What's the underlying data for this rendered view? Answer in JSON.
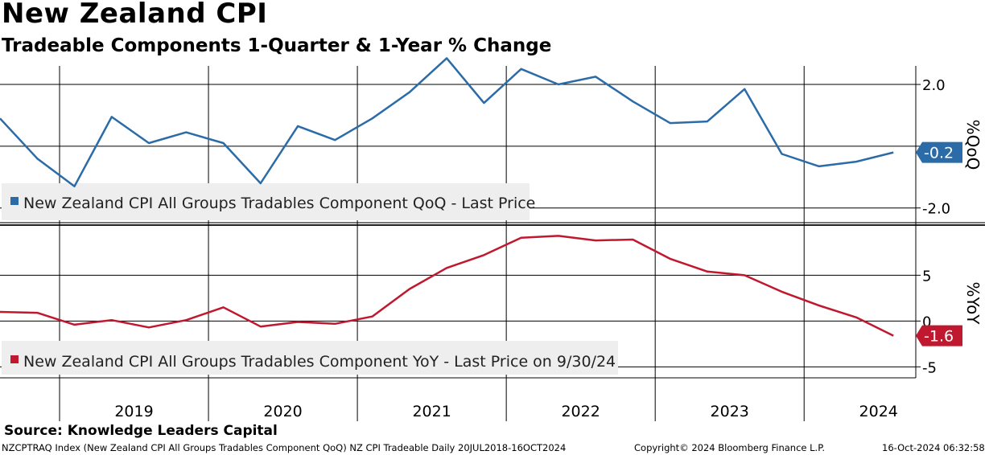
{
  "title": "New Zealand CPI",
  "subtitle": "Tradeable Components 1-Quarter & 1-Year % Change",
  "source": "Source: Knowledge Leaders Capital",
  "footer": {
    "left": "NZCPTRAQ Index (New Zealand CPI All Groups Tradables Component QoQ) NZ CPI Tradeable  Daily 20JUL2018-16OCT2024",
    "middle": "Copyright© 2024 Bloomberg Finance L.P.",
    "right": "16-Oct-2024 06:32:58"
  },
  "chart_data": [
    {
      "type": "line",
      "name": "qoq",
      "ylabel": "%QoQ",
      "legend": "New Zealand CPI All Groups Tradables Component QoQ - Last Price",
      "color": "#2b6ca8",
      "ylim": [
        -2.45,
        2.6
      ],
      "yticks": [
        2.0,
        0,
        -2.0
      ],
      "ytick_labels": [
        "2.0",
        "",
        "-2.0"
      ],
      "x": [
        2018.6,
        2018.85,
        2019.1,
        2019.35,
        2019.6,
        2019.85,
        2020.1,
        2020.35,
        2020.6,
        2020.85,
        2021.1,
        2021.35,
        2021.6,
        2021.85,
        2022.1,
        2022.35,
        2022.6,
        2022.85,
        2023.1,
        2023.35,
        2023.6,
        2023.85,
        2024.1,
        2024.35,
        2024.6
      ],
      "values": [
        0.9,
        -0.4,
        -1.3,
        0.95,
        0.1,
        0.45,
        0.1,
        -1.2,
        0.65,
        0.2,
        0.9,
        1.75,
        2.85,
        1.4,
        2.5,
        2.0,
        2.25,
        1.45,
        0.75,
        0.8,
        1.85,
        -0.25,
        -0.65,
        -0.5,
        -0.2
      ],
      "last_value_label": "-0.2"
    },
    {
      "type": "line",
      "name": "yoy",
      "ylabel": "%YoY",
      "legend": "New Zealand CPI All Groups Tradables Component YoY - Last Price on 9/30/24",
      "color": "#c0182f",
      "ylim": [
        -6.2,
        10.3
      ],
      "yticks": [
        5,
        0,
        -5
      ],
      "ytick_labels": [
        "5",
        "0",
        "-5"
      ],
      "x": [
        2018.6,
        2018.85,
        2019.1,
        2019.35,
        2019.6,
        2019.85,
        2020.1,
        2020.35,
        2020.6,
        2020.85,
        2021.1,
        2021.35,
        2021.6,
        2021.85,
        2022.1,
        2022.35,
        2022.6,
        2022.85,
        2023.1,
        2023.35,
        2023.6,
        2023.85,
        2024.1,
        2024.35,
        2024.6
      ],
      "values": [
        1.0,
        0.9,
        -0.4,
        0.1,
        -0.7,
        0.1,
        1.5,
        -0.6,
        -0.1,
        -0.3,
        0.5,
        3.5,
        5.8,
        7.2,
        9.1,
        9.3,
        8.8,
        8.9,
        6.8,
        5.4,
        5.0,
        3.2,
        1.7,
        0.4,
        -1.6
      ],
      "last_value_label": "-1.6"
    }
  ],
  "x_axis": {
    "years": [
      "2019",
      "2020",
      "2021",
      "2022",
      "2023",
      "2024"
    ],
    "year_centers": [
      2019.5,
      2020.5,
      2021.5,
      2022.5,
      2023.5,
      2024.5
    ],
    "gridlines": [
      2019,
      2020,
      2021,
      2022,
      2023,
      2024
    ],
    "xlim": [
      2018.6,
      2024.75
    ]
  }
}
